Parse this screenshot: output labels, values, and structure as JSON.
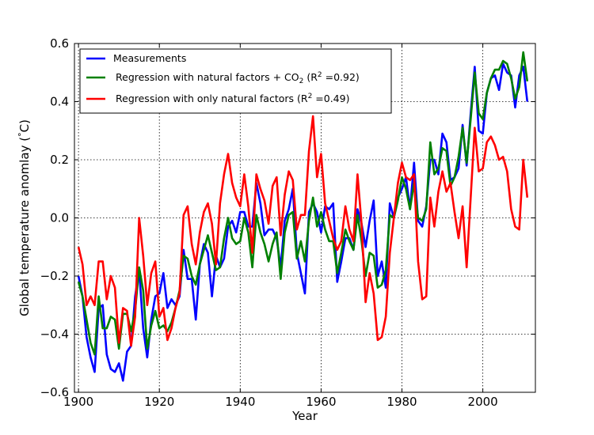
{
  "chart_data": {
    "type": "line",
    "xlabel": "Year",
    "ylabel_parts": [
      "Global temperature anomlay (",
      "°",
      "C)"
    ],
    "xlim": [
      1899,
      2013
    ],
    "ylim": [
      -0.6,
      0.6
    ],
    "x_ticks": [
      1900,
      1920,
      1940,
      1960,
      1980,
      2000
    ],
    "y_ticks": [
      -0.6,
      -0.4,
      -0.2,
      0.0,
      0.2,
      0.4,
      0.6
    ],
    "x_tick_labels": [
      "1900",
      "1920",
      "1940",
      "1960",
      "1980",
      "2000"
    ],
    "y_tick_labels": [
      "−0.6",
      "−0.4",
      "−0.2",
      "0.0",
      "0.2",
      "0.4",
      "0.6"
    ],
    "grid": true,
    "legend_position": "top-left",
    "legend": [
      {
        "color": "#0000ff",
        "parts": [
          [
            "Measurements",
            ""
          ]
        ]
      },
      {
        "color": "#008000",
        "parts": [
          [
            "Regression with natural factors + CO",
            ""
          ],
          [
            "2",
            "sub"
          ],
          [
            " (R",
            ""
          ],
          [
            "2",
            "sup"
          ],
          [
            " =0.92)",
            ""
          ]
        ]
      },
      {
        "color": "#ff0000",
        "parts": [
          [
            "Regression with only natural factors (R",
            ""
          ],
          [
            "2",
            "sup"
          ],
          [
            " =0.49)",
            ""
          ]
        ]
      }
    ],
    "x_start": 1900,
    "series": [
      {
        "color": "#0000ff",
        "values": [
          -0.2,
          -0.27,
          -0.41,
          -0.48,
          -0.53,
          -0.31,
          -0.3,
          -0.47,
          -0.52,
          -0.53,
          -0.5,
          -0.56,
          -0.46,
          -0.44,
          -0.27,
          -0.18,
          -0.38,
          -0.48,
          -0.35,
          -0.27,
          -0.26,
          -0.19,
          -0.31,
          -0.28,
          -0.3,
          -0.27,
          -0.11,
          -0.21,
          -0.21,
          -0.35,
          -0.16,
          -0.09,
          -0.12,
          -0.27,
          -0.13,
          -0.17,
          -0.14,
          -0.03,
          -0.01,
          -0.05,
          0.02,
          0.02,
          -0.03,
          -0.03,
          0.12,
          0.05,
          -0.06,
          -0.04,
          -0.04,
          -0.07,
          -0.17,
          -0.01,
          0.03,
          0.1,
          -0.12,
          -0.19,
          -0.26,
          0.02,
          0.05,
          0.02,
          -0.05,
          0.04,
          0.03,
          0.05,
          -0.22,
          -0.15,
          -0.07,
          -0.07,
          -0.11,
          0.03,
          -0.02,
          -0.1,
          -0.01,
          0.06,
          -0.2,
          -0.15,
          -0.24,
          0.05,
          0.0,
          0.07,
          0.1,
          0.14,
          0.03,
          0.19,
          -0.01,
          -0.03,
          0.04,
          0.2,
          0.2,
          0.15,
          0.29,
          0.26,
          0.13,
          0.14,
          0.17,
          0.32,
          0.18,
          0.36,
          0.52,
          0.3,
          0.29,
          0.43,
          0.48,
          0.49,
          0.44,
          0.53,
          0.5,
          0.49,
          0.38,
          0.49,
          0.52,
          0.4
        ]
      },
      {
        "color": "#008000",
        "values": [
          -0.22,
          -0.27,
          -0.35,
          -0.43,
          -0.47,
          -0.27,
          -0.38,
          -0.38,
          -0.34,
          -0.35,
          -0.45,
          -0.33,
          -0.33,
          -0.39,
          -0.32,
          -0.17,
          -0.25,
          -0.45,
          -0.37,
          -0.32,
          -0.38,
          -0.37,
          -0.39,
          -0.36,
          -0.31,
          -0.25,
          -0.13,
          -0.14,
          -0.2,
          -0.23,
          -0.16,
          -0.11,
          -0.06,
          -0.12,
          -0.18,
          -0.17,
          -0.07,
          0.0,
          -0.07,
          -0.09,
          -0.08,
          0.0,
          -0.05,
          -0.17,
          0.01,
          -0.05,
          -0.09,
          -0.15,
          -0.09,
          -0.05,
          -0.21,
          -0.05,
          0.01,
          0.02,
          -0.14,
          -0.08,
          -0.15,
          -0.01,
          0.07,
          -0.03,
          0.02,
          -0.04,
          -0.08,
          -0.08,
          -0.19,
          -0.12,
          -0.04,
          -0.08,
          -0.11,
          0.01,
          -0.08,
          -0.2,
          -0.12,
          -0.13,
          -0.24,
          -0.23,
          -0.18,
          0.01,
          0.0,
          0.06,
          0.14,
          0.1,
          0.03,
          0.12,
          0.0,
          -0.01,
          0.03,
          0.26,
          0.15,
          0.17,
          0.24,
          0.23,
          0.11,
          0.14,
          0.21,
          0.31,
          0.19,
          0.34,
          0.5,
          0.36,
          0.34,
          0.43,
          0.48,
          0.51,
          0.51,
          0.54,
          0.53,
          0.48,
          0.41,
          0.45,
          0.57,
          0.47
        ]
      },
      {
        "color": "#ff0000",
        "values": [
          -0.1,
          -0.16,
          -0.3,
          -0.27,
          -0.3,
          -0.15,
          -0.15,
          -0.28,
          -0.2,
          -0.24,
          -0.43,
          -0.31,
          -0.32,
          -0.44,
          -0.34,
          0.0,
          -0.13,
          -0.3,
          -0.19,
          -0.15,
          -0.34,
          -0.31,
          -0.42,
          -0.38,
          -0.31,
          -0.26,
          0.01,
          0.04,
          -0.09,
          -0.16,
          -0.05,
          0.02,
          0.05,
          -0.02,
          -0.16,
          0.05,
          0.15,
          0.22,
          0.12,
          0.07,
          0.04,
          0.15,
          0.04,
          -0.12,
          0.15,
          0.1,
          0.06,
          -0.02,
          0.11,
          0.14,
          -0.06,
          0.08,
          0.16,
          0.13,
          -0.04,
          0.01,
          0.01,
          0.23,
          0.35,
          0.14,
          0.22,
          0.05,
          -0.01,
          -0.07,
          -0.11,
          -0.08,
          0.04,
          -0.04,
          -0.08,
          0.15,
          -0.02,
          -0.29,
          -0.19,
          -0.26,
          -0.42,
          -0.41,
          -0.34,
          -0.12,
          0.0,
          0.12,
          0.19,
          0.14,
          0.13,
          0.15,
          -0.15,
          -0.28,
          -0.27,
          0.07,
          -0.03,
          0.09,
          0.16,
          0.09,
          0.12,
          0.02,
          -0.07,
          0.04,
          -0.17,
          0.07,
          0.31,
          0.16,
          0.17,
          0.26,
          0.28,
          0.25,
          0.2,
          0.21,
          0.16,
          0.03,
          -0.03,
          -0.04,
          0.2,
          0.07
        ]
      }
    ]
  }
}
